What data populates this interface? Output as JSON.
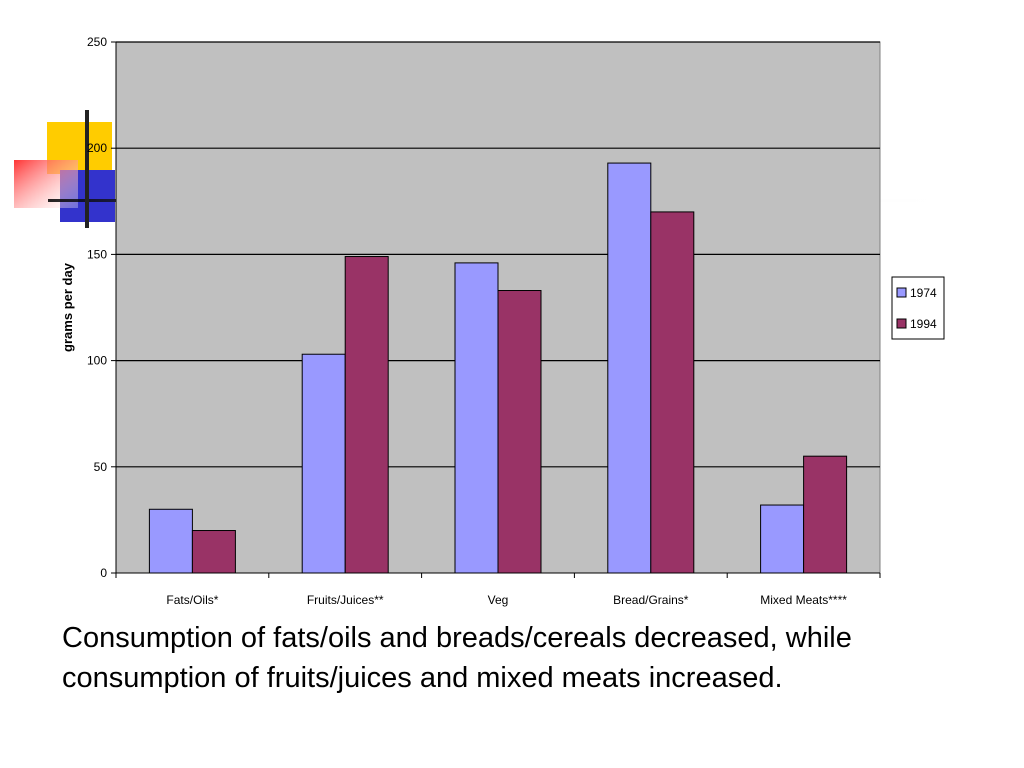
{
  "colors": {
    "plot_background": "#c0c0c0",
    "series_1974": "#9999ff",
    "series_1994": "#993366",
    "decor_yellow": "#ffcc00",
    "decor_blue": "#3333cc",
    "decor_red": "#ff3333"
  },
  "chart_data": {
    "type": "bar",
    "title": "",
    "xlabel": "",
    "ylabel": "grams per day",
    "ylim": [
      0,
      250
    ],
    "yticks": [
      0,
      50,
      100,
      150,
      200,
      250
    ],
    "grid": true,
    "legend_position": "right",
    "categories": [
      "Fats/Oils*",
      "Fruits/Juices**",
      "Veg",
      "Bread/Grains*",
      "Mixed Meats****"
    ],
    "series": [
      {
        "name": "1974",
        "values": [
          30,
          103,
          146,
          193,
          32
        ]
      },
      {
        "name": "1994",
        "values": [
          20,
          149,
          133,
          170,
          55
        ]
      }
    ]
  },
  "caption": "Consumption of fats/oils and breads/cereals decreased, while consumption of fruits/juices and mixed meats increased."
}
